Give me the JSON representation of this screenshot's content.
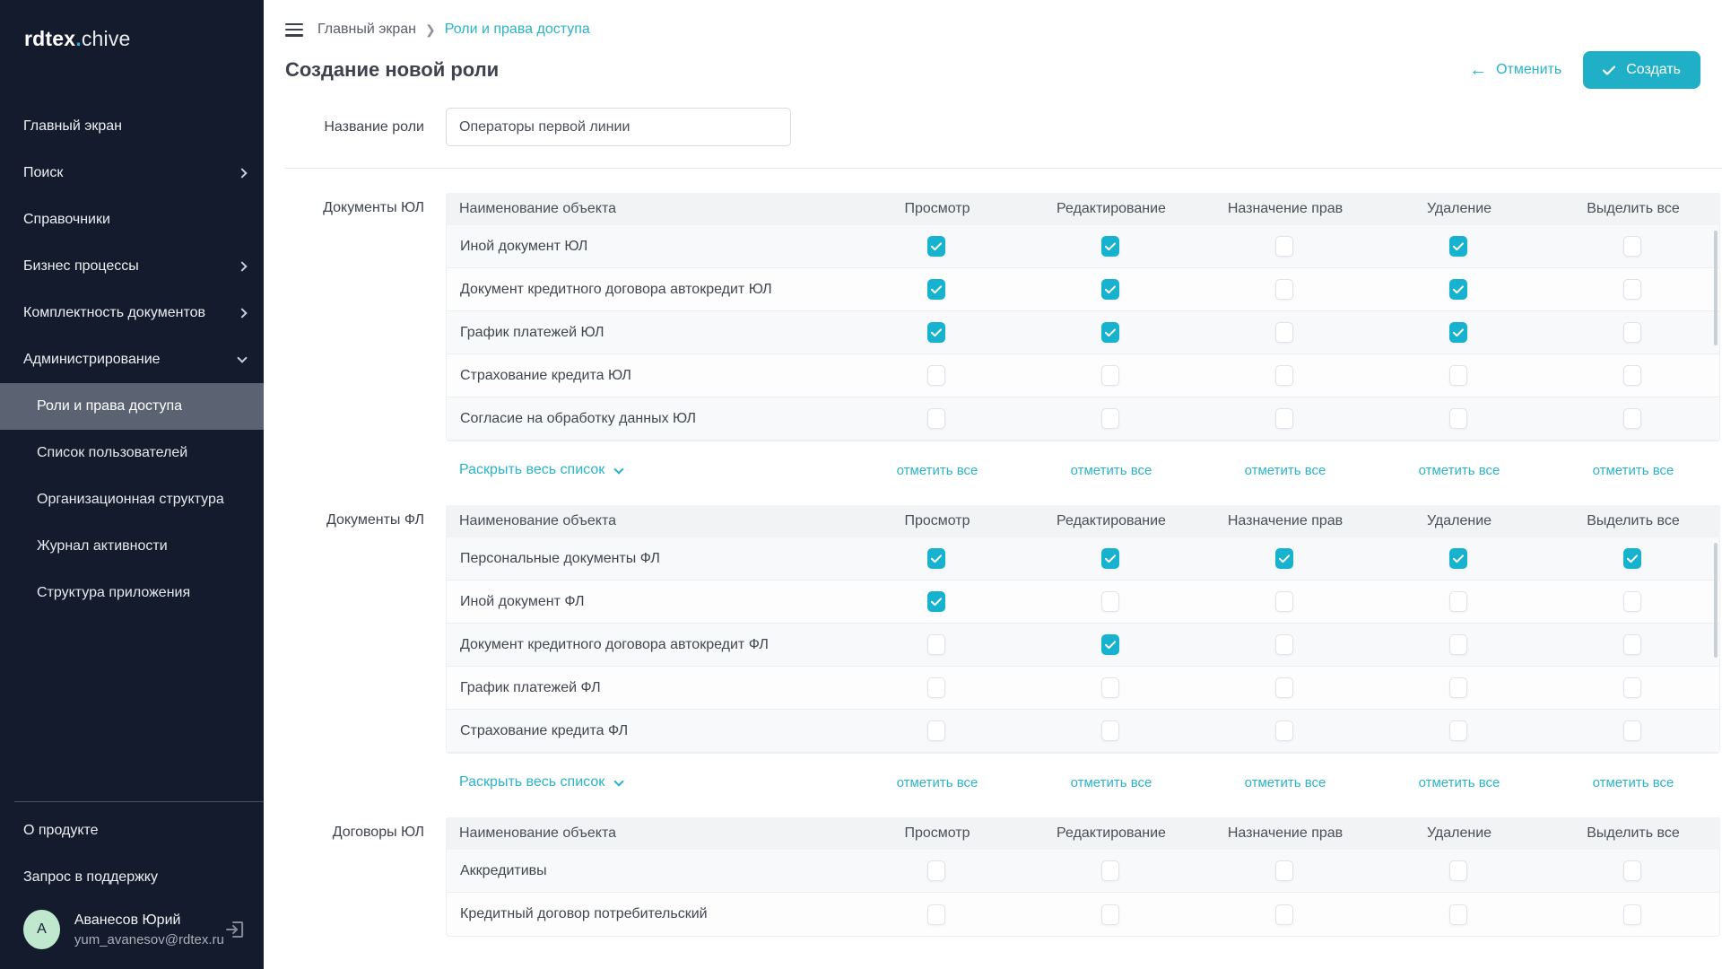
{
  "colors": {
    "accent": "#1FB0C8",
    "checkbox": "#17B2CE",
    "sidebar_bg": "#141B2C",
    "active_item_bg": "#5B6373"
  },
  "sidebar": {
    "logo": {
      "part1": "rdtex",
      "dot": ".",
      "part2": "chive"
    },
    "items": [
      {
        "label": "Главный экран",
        "chevron": "none"
      },
      {
        "label": "Поиск",
        "chevron": "right"
      },
      {
        "label": "Справочники",
        "chevron": "none"
      },
      {
        "label": "Бизнес процессы",
        "chevron": "right"
      },
      {
        "label": "Комплектность документов",
        "chevron": "right"
      },
      {
        "label": "Администрирование",
        "chevron": "down"
      }
    ],
    "subitems": [
      {
        "label": "Роли и права доступа",
        "active": true
      },
      {
        "label": "Список пользователей",
        "active": false
      },
      {
        "label": "Организационная структура",
        "active": false
      },
      {
        "label": "Журнал активности",
        "active": false
      },
      {
        "label": "Структура приложения",
        "active": false
      }
    ],
    "footer_links": [
      "О продукте",
      "Запрос в поддержку"
    ],
    "user": {
      "initial": "А",
      "name": "Аванесов Юрий",
      "email": "yum_avanesov@rdtex.ru"
    }
  },
  "header": {
    "breadcrumb_root": "Главный экран",
    "breadcrumb_current": "Роли и права доступа",
    "title": "Создание новой роли",
    "cancel_label": "Отменить",
    "create_label": "Создать"
  },
  "form": {
    "role_name_label": "Название роли",
    "role_name_value": "Операторы первой линии"
  },
  "table_common": {
    "name_header": "Наименование объекта",
    "perm_headers": [
      "Просмотр",
      "Редактирование",
      "Назначение прав",
      "Удаление",
      "Выделить все"
    ],
    "expand_label": "Раскрыть весь список",
    "check_all_label": "отметить все"
  },
  "sections": [
    {
      "label": "Документы ЮЛ",
      "footer": true,
      "scrollbar": true,
      "rows": [
        {
          "name": "Иной документ ЮЛ",
          "checks": [
            true,
            true,
            false,
            true,
            false
          ]
        },
        {
          "name": "Документ кредитного договора автокредит ЮЛ",
          "checks": [
            true,
            true,
            false,
            true,
            false
          ]
        },
        {
          "name": "График платежей ЮЛ",
          "checks": [
            true,
            true,
            false,
            true,
            false
          ]
        },
        {
          "name": "Страхование кредита ЮЛ",
          "checks": [
            false,
            false,
            false,
            false,
            false
          ]
        },
        {
          "name": "Согласие на обработку данных ЮЛ",
          "checks": [
            false,
            false,
            false,
            false,
            false
          ]
        }
      ]
    },
    {
      "label": "Документы ФЛ",
      "footer": true,
      "scrollbar": true,
      "rows": [
        {
          "name": "Персональные документы ФЛ",
          "checks": [
            true,
            true,
            true,
            true,
            true
          ]
        },
        {
          "name": "Иной документ ФЛ",
          "checks": [
            true,
            false,
            false,
            false,
            false
          ]
        },
        {
          "name": "Документ кредитного договора автокредит ФЛ",
          "checks": [
            false,
            true,
            false,
            false,
            false
          ]
        },
        {
          "name": "График платежей ФЛ",
          "checks": [
            false,
            false,
            false,
            false,
            false
          ]
        },
        {
          "name": "Страхование кредита ФЛ",
          "checks": [
            false,
            false,
            false,
            false,
            false
          ]
        }
      ]
    },
    {
      "label": "Договоры ЮЛ",
      "footer": false,
      "scrollbar": false,
      "rows": [
        {
          "name": "Аккредитивы",
          "checks": [
            false,
            false,
            false,
            false,
            false
          ]
        },
        {
          "name": "Кредитный договор потребительский",
          "checks": [
            false,
            false,
            false,
            false,
            false
          ]
        }
      ]
    }
  ]
}
